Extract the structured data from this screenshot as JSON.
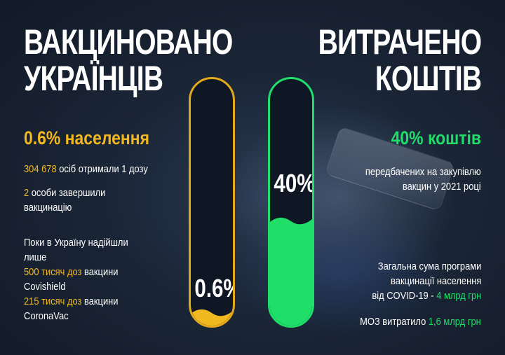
{
  "left": {
    "title_line1": "ВАКЦИНОВАНО",
    "title_line2": "УКРАЇНЦІВ",
    "percent_heading": "0.6% населення",
    "dose1_number": "304 678",
    "dose1_text": " осіб отримали 1 дозу",
    "completed_number": "2",
    "completed_text1": " особи завершили",
    "completed_text2": "вакцинацію",
    "arrived_line1": "Поки в Україну надійшли",
    "arrived_line2": "лише",
    "covishield_amount": "500 тисяч доз",
    "covishield_text": " вакцини",
    "covishield_name": "Covishield",
    "coronavac_amount": "215 тисяч доз",
    "coronavac_text": " вакцини",
    "coronavac_name": "CoronaVac"
  },
  "right": {
    "title_line1": "ВИТРАЧЕНО",
    "title_line2": "КОШТІВ",
    "percent_heading": "40% коштів",
    "desc_line1": "передбачених на закупівлю",
    "desc_line2": "вакцин у 2021 році",
    "total_line1": "Загальна сума програми",
    "total_line2": "вакцинації населення",
    "total_line3": "від COVID-19 - ",
    "total_amount": "4 млрд грн",
    "moz_text": "МОЗ витратило ",
    "moz_amount": "1,6 млрд грн"
  },
  "tubes": {
    "vaccinated": {
      "label": "0.6%",
      "fill_fraction": 0.006,
      "color": "#f2b81f"
    },
    "spent": {
      "label": "40%",
      "fill_fraction": 0.4,
      "color": "#1fde6a"
    }
  },
  "colors": {
    "accent_yellow": "#f2b81f",
    "accent_green": "#1fde6a",
    "background": "#1a2536"
  }
}
